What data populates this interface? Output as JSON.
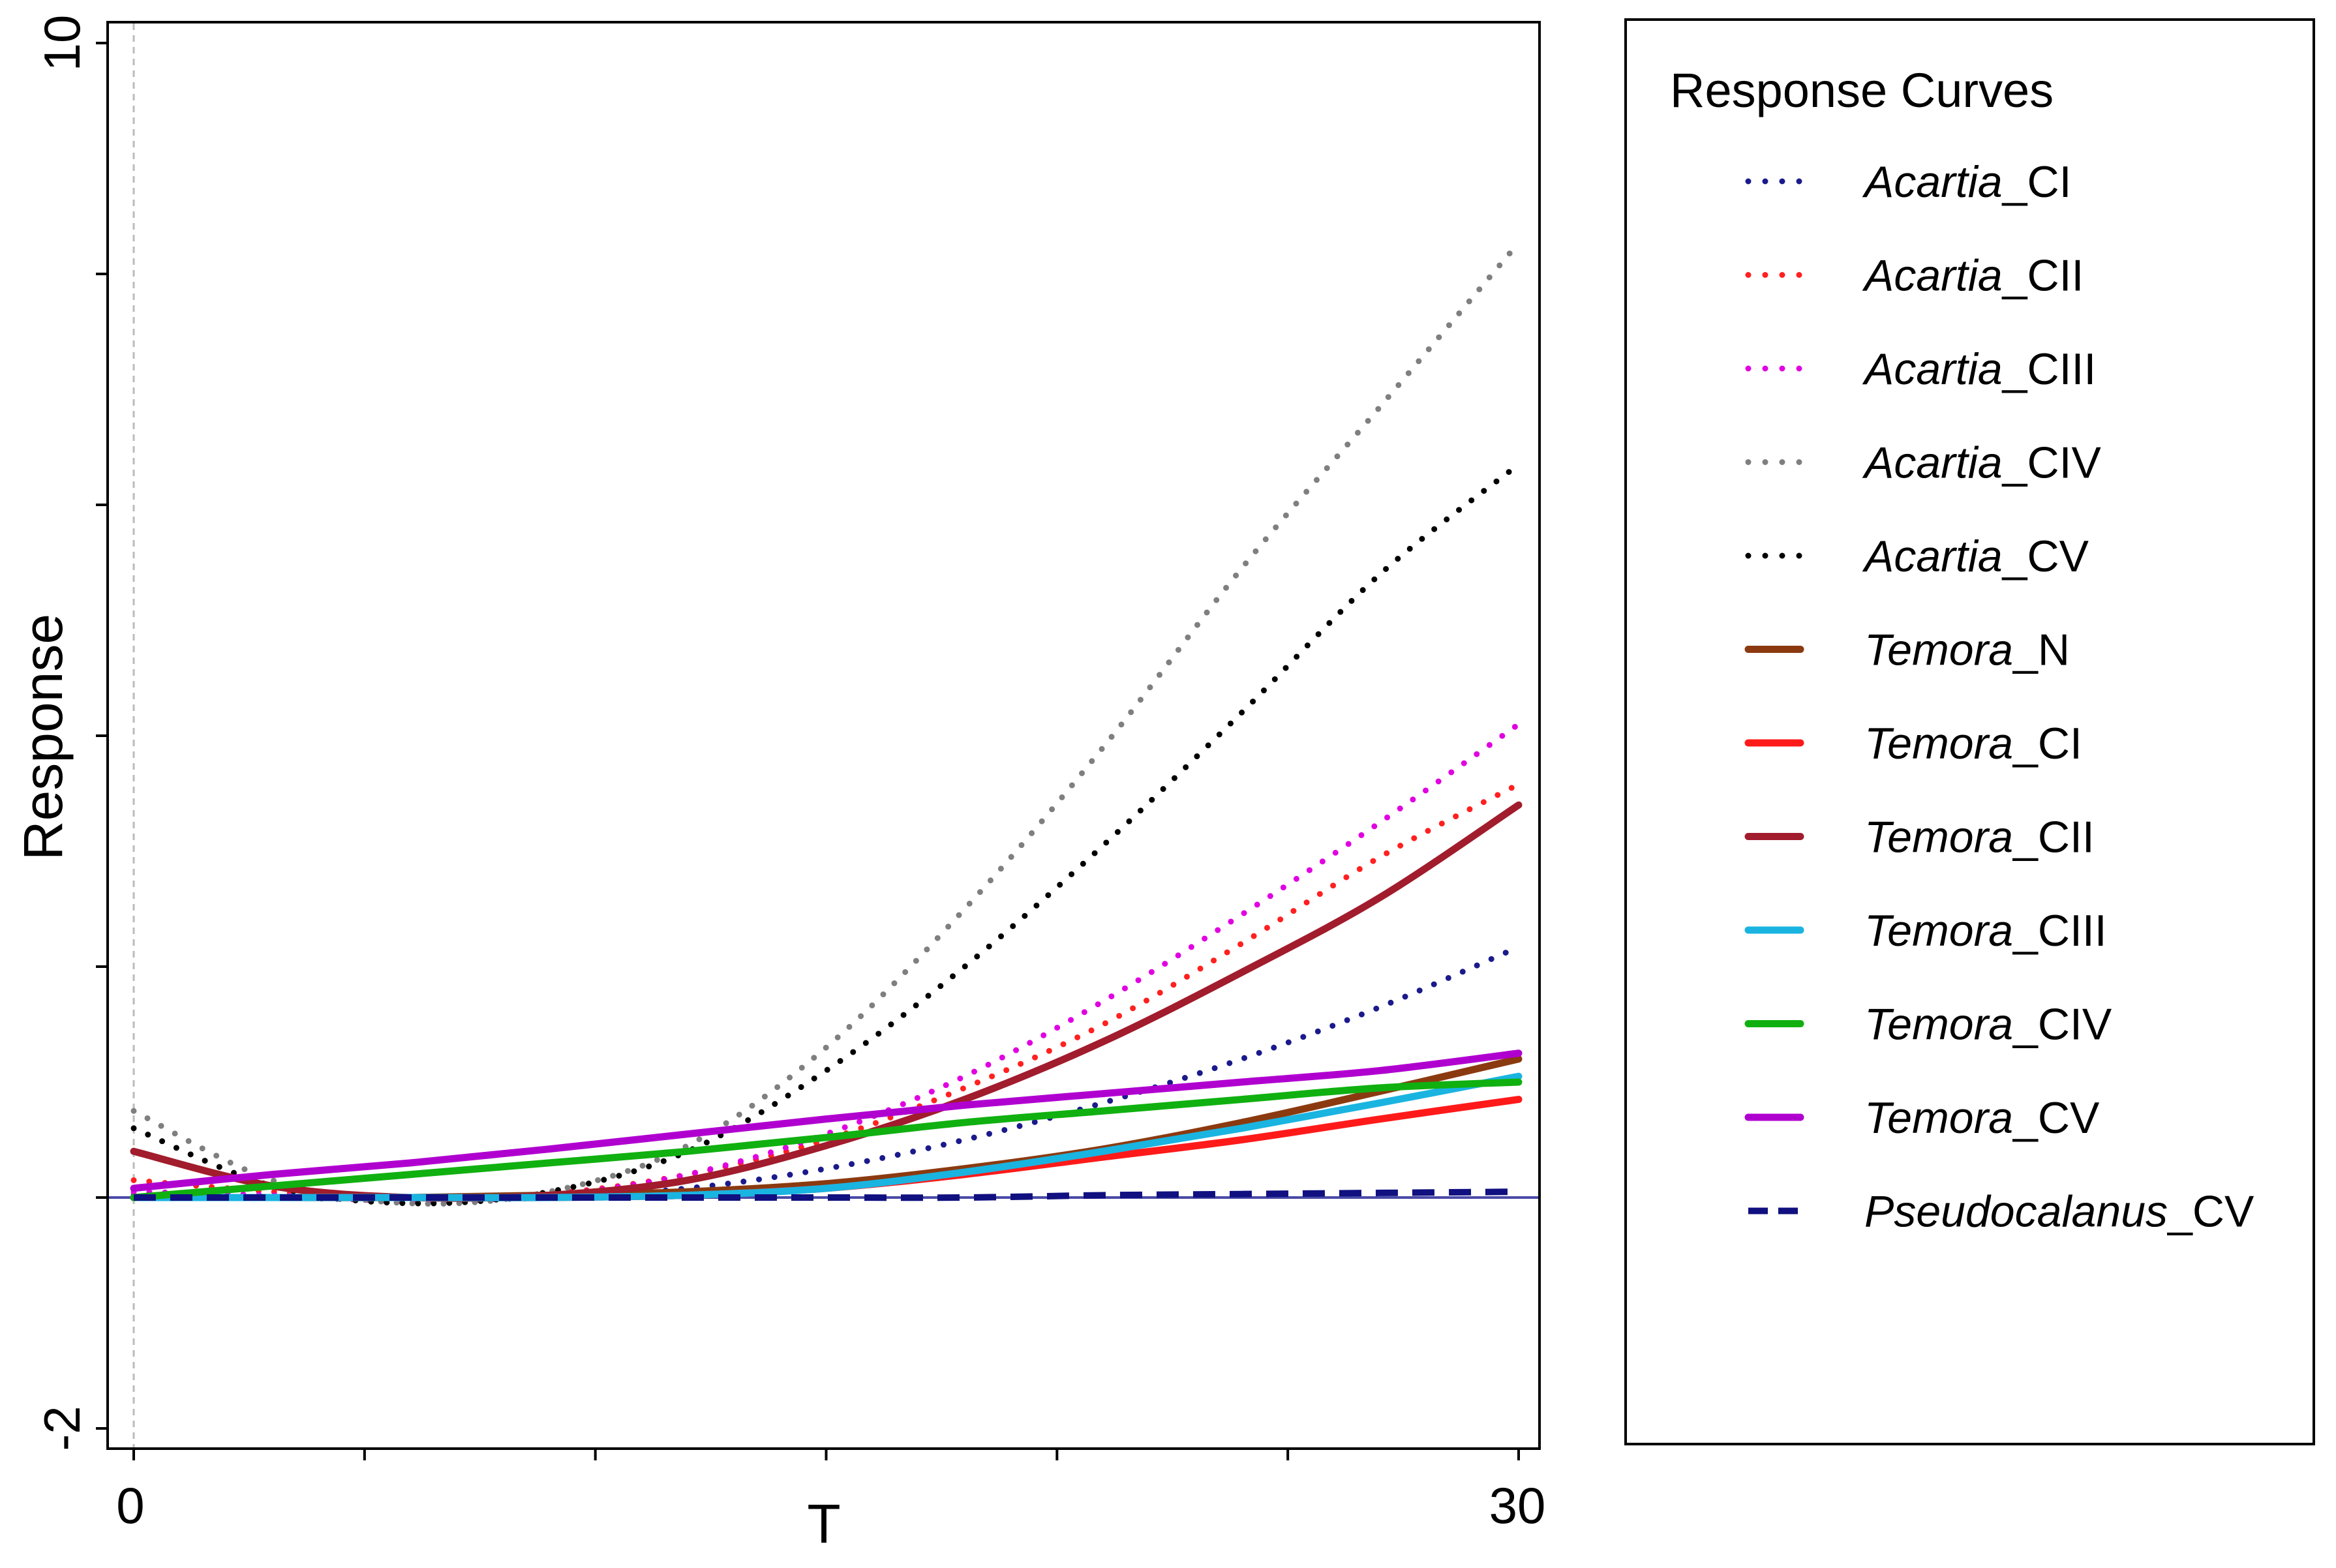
{
  "chart_data": {
    "type": "line",
    "title": "",
    "xlabel": "T",
    "ylabel": "Response",
    "xlim": [
      0,
      30
    ],
    "ylim": [
      -2,
      10
    ],
    "x_tick_labels": [
      "0",
      "30"
    ],
    "y_tick_labels": [
      "-2",
      "10"
    ],
    "y_minor_ticks": [
      -2,
      0,
      2,
      4,
      6,
      8,
      10
    ],
    "x_minor_ticks": [
      0,
      5,
      10,
      15,
      20,
      25,
      30
    ],
    "reference_lines": {
      "y": 0,
      "x": 0
    },
    "legend_title": "Response Curves",
    "legend_position": "right-outside",
    "x": [
      0,
      3,
      6,
      9,
      12,
      15,
      18,
      21,
      24,
      27,
      30
    ],
    "series": [
      {
        "genus": "Acartia",
        "stage": "_CI",
        "color": "#1a1a8c",
        "style": "dotted",
        "values": [
          0.02,
          0.0,
          -0.02,
          0.0,
          0.08,
          0.25,
          0.5,
          0.82,
          1.2,
          1.65,
          2.17
        ]
      },
      {
        "genus": "Acartia",
        "stage": "_CII",
        "color": "#ff2020",
        "style": "dotted",
        "values": [
          0.15,
          0.05,
          -0.02,
          0.03,
          0.2,
          0.5,
          0.95,
          1.5,
          2.2,
          2.95,
          3.58
        ]
      },
      {
        "genus": "Acartia",
        "stage": "_CIII",
        "color": "#e000e0",
        "style": "dotted",
        "values": [
          0.05,
          0.02,
          -0.03,
          0.02,
          0.2,
          0.55,
          1.05,
          1.7,
          2.45,
          3.25,
          4.1
        ]
      },
      {
        "genus": "Acartia",
        "stage": "_CIV",
        "color": "#7f7f7f",
        "style": "dotted",
        "values": [
          0.75,
          0.15,
          -0.05,
          0.05,
          0.45,
          1.3,
          2.5,
          3.9,
          5.45,
          6.85,
          8.27
        ]
      },
      {
        "genus": "Acartia",
        "stage": "_CV",
        "color": "#000000",
        "style": "dotted",
        "values": [
          0.6,
          0.1,
          -0.05,
          0.05,
          0.4,
          1.1,
          2.0,
          3.05,
          4.2,
          5.4,
          6.35
        ]
      },
      {
        "genus": "Temora",
        "stage": "_N",
        "color": "#8b3a10",
        "style": "solid",
        "values": [
          0.0,
          0.0,
          0.0,
          0.02,
          0.05,
          0.12,
          0.25,
          0.42,
          0.65,
          0.92,
          1.2
        ]
      },
      {
        "genus": "Temora",
        "stage": "_CI",
        "color": "#ff1a1a",
        "style": "solid",
        "values": [
          0.0,
          0.0,
          0.0,
          0.0,
          0.02,
          0.08,
          0.2,
          0.35,
          0.5,
          0.68,
          0.85
        ]
      },
      {
        "genus": "Temora",
        "stage": "_CII",
        "color": "#a11c2c",
        "style": "solid",
        "values": [
          0.4,
          0.1,
          0.0,
          0.02,
          0.15,
          0.45,
          0.85,
          1.35,
          1.95,
          2.6,
          3.4
        ]
      },
      {
        "genus": "Temora",
        "stage": "_CIII",
        "color": "#1ab4e0",
        "style": "solid",
        "values": [
          0.0,
          0.0,
          0.0,
          0.0,
          0.02,
          0.08,
          0.22,
          0.4,
          0.6,
          0.82,
          1.05
        ]
      },
      {
        "genus": "Temora",
        "stage": "_CIV",
        "color": "#10b010",
        "style": "solid",
        "values": [
          0.0,
          0.1,
          0.2,
          0.3,
          0.4,
          0.52,
          0.65,
          0.75,
          0.85,
          0.95,
          1.0
        ]
      },
      {
        "genus": "Temora",
        "stage": "_CV",
        "color": "#b000d0",
        "style": "solid",
        "values": [
          0.08,
          0.2,
          0.3,
          0.42,
          0.55,
          0.68,
          0.8,
          0.9,
          1.0,
          1.1,
          1.25
        ]
      },
      {
        "genus": "Pseudocalanus",
        "stage": "_CV",
        "color": "#101080",
        "style": "dashed",
        "values": [
          0.0,
          0.0,
          0.0,
          0.0,
          0.0,
          0.0,
          0.0,
          0.02,
          0.03,
          0.04,
          0.05
        ]
      }
    ]
  }
}
